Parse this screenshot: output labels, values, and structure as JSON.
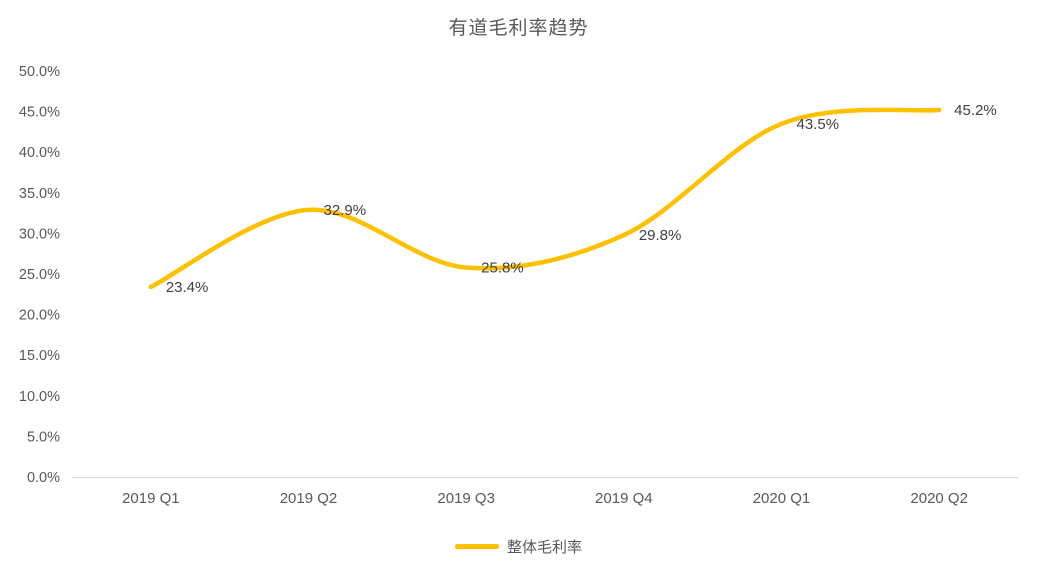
{
  "chart_data": {
    "type": "line",
    "title": "有道毛利率趋势",
    "categories": [
      "2019 Q1",
      "2019 Q2",
      "2019 Q3",
      "2019 Q4",
      "2020 Q1",
      "2020 Q2"
    ],
    "series": [
      {
        "name": "整体毛利率",
        "values": [
          23.4,
          32.9,
          25.8,
          29.8,
          43.5,
          45.2
        ]
      }
    ],
    "point_labels": [
      "23.4%",
      "32.9%",
      "25.8%",
      "29.8%",
      "43.5%",
      "45.2%"
    ],
    "y_tick_labels": [
      "0.0%",
      "5.0%",
      "10.0%",
      "15.0%",
      "20.0%",
      "25.0%",
      "30.0%",
      "35.0%",
      "40.0%",
      "45.0%",
      "50.0%"
    ],
    "ylim": [
      0,
      50
    ],
    "y_step": 5,
    "grid": false,
    "smooth": true,
    "legend_position": "bottom",
    "colors": {
      "line": "#FFC000",
      "axis_line": "#D9D9D9",
      "tick_text": "#595959",
      "title_text": "#595959",
      "data_label_text": "#404040",
      "background": "#FFFFFF"
    }
  }
}
